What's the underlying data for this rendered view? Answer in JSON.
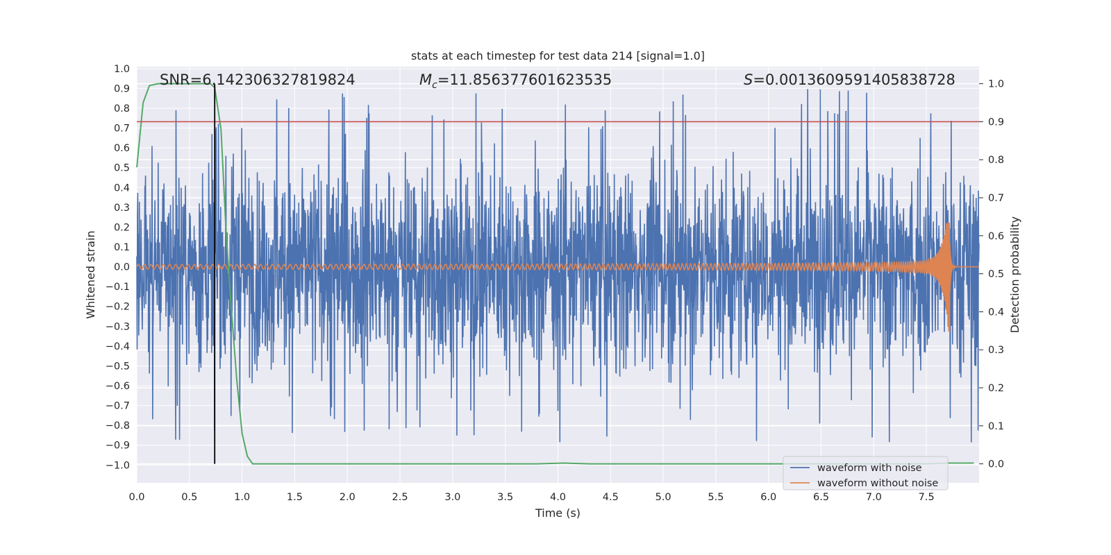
{
  "chart_data": {
    "type": "line",
    "title": "stats at each timestep for test data 214 [signal=1.0]",
    "xlabel": "Time (s)",
    "ylabel_left": "Whitened strain",
    "ylabel_right": "Detection probability",
    "xlim": [
      0.0,
      8.0
    ],
    "ylim_left": [
      -1.09,
      1.01
    ],
    "ylim_right": [
      -0.05,
      1.045
    ],
    "x_ticks": [
      "0.0",
      "0.5",
      "1.0",
      "1.5",
      "2.0",
      "2.5",
      "3.0",
      "3.5",
      "4.0",
      "4.5",
      "5.0",
      "5.5",
      "6.0",
      "6.5",
      "7.0",
      "7.5"
    ],
    "y_left_ticks": [
      "1.0",
      "0.9",
      "0.8",
      "0.7",
      "0.6",
      "0.5",
      "0.4",
      "0.3",
      "0.2",
      "0.1",
      "0.0",
      "−0.1",
      "−0.2",
      "−0.3",
      "−0.4",
      "−0.5",
      "−0.6",
      "−0.7",
      "−0.8",
      "−0.9",
      "−1.0"
    ],
    "y_right_ticks": [
      "1.0",
      "0.9",
      "0.8",
      "0.7",
      "0.6",
      "0.5",
      "0.4",
      "0.3",
      "0.2",
      "0.1",
      "0.0"
    ],
    "annotations": {
      "snr": "SNR=6.142306327819824",
      "mc_symbol": "M",
      "mc_sub": "c",
      "mc_value": "=11.856377601623535",
      "s_symbol": "S",
      "s_value": "=0.0013609591405838728"
    },
    "threshold_probability": 0.9,
    "detection_time_s": 0.74,
    "merger_time_s": 7.72,
    "series": [
      {
        "name": "waveform with noise",
        "color": "#4c72b0",
        "amplitude_typical": 0.45,
        "peak_max": 0.9,
        "peak_min": -1.0
      },
      {
        "name": "waveform without noise",
        "color": "#dd8452",
        "amplitude_start": 0.012,
        "peak_max": 0.22,
        "peak_min": -0.33
      },
      {
        "name": "detection probability",
        "color": "#55a868",
        "x": [
          0.0,
          0.06,
          0.12,
          0.2,
          0.5,
          0.7,
          0.74,
          0.8,
          0.85,
          0.9,
          0.95,
          1.0,
          1.05,
          1.1,
          1.15,
          2.0,
          3.0,
          3.8,
          4.05,
          4.3,
          5.0,
          6.0,
          7.0,
          7.5,
          7.7,
          7.95
        ],
        "y": [
          0.78,
          0.95,
          0.995,
          1.0,
          1.0,
          1.0,
          0.99,
          0.88,
          0.6,
          0.4,
          0.22,
          0.08,
          0.02,
          0.0,
          0.0,
          0.0,
          0.0,
          0.0,
          0.002,
          0.0,
          0.0,
          0.0,
          0.0,
          0.0,
          0.002,
          0.002
        ]
      }
    ],
    "legend": {
      "placement": "lower-right",
      "entries": [
        {
          "label": "waveform with noise",
          "color": "#4c72b0"
        },
        {
          "label": "waveform without noise",
          "color": "#dd8452"
        }
      ]
    },
    "colors": {
      "background": "#eaeaf2",
      "grid": "#ffffff",
      "threshold": "#c44e52",
      "detection_marker": "#000000"
    }
  }
}
